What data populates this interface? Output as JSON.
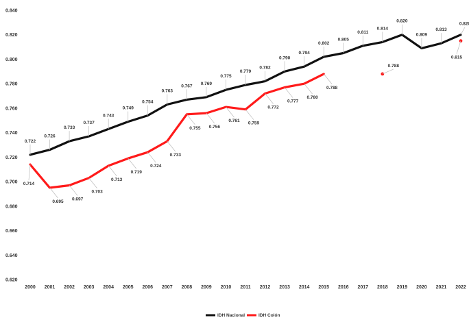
{
  "chart_data": {
    "type": "line",
    "title": "",
    "xlabel": "",
    "ylabel": "",
    "ylim": [
      0.62,
      0.84
    ],
    "ytick_step": 0.02,
    "y_ticks": [
      "0.620",
      "0.640",
      "0.660",
      "0.680",
      "0.700",
      "0.720",
      "0.740",
      "0.760",
      "0.780",
      "0.800",
      "0.820",
      "0.840"
    ],
    "grid": false,
    "legend_position": "bottom",
    "x": [
      "2000",
      "2001",
      "2002",
      "2003",
      "2004",
      "2005",
      "2006",
      "2007",
      "2008",
      "2009",
      "2010",
      "2011",
      "2012",
      "2013",
      "2014",
      "2015",
      "2016",
      "2017",
      "2018",
      "2019",
      "2020",
      "2021",
      "2022"
    ],
    "series": [
      {
        "name": "IDH Nacional",
        "color": "#111111",
        "values": [
          0.722,
          0.726,
          0.733,
          0.737,
          0.743,
          0.749,
          0.754,
          0.763,
          0.767,
          0.769,
          0.775,
          0.779,
          0.782,
          0.79,
          0.794,
          0.802,
          0.805,
          0.811,
          0.814,
          0.82,
          0.809,
          0.813,
          0.82
        ],
        "labels": [
          "0.722",
          "0.726",
          "0.733",
          "0.737",
          "0.743",
          "0.749",
          "0.754",
          "0.763",
          "0.767",
          "0.769",
          "0.775",
          "0.779",
          "0.782",
          "0.790",
          "0.794",
          "0.802",
          "0.805",
          "0.811",
          "0.814",
          "0.820",
          "0.809",
          "0.813",
          "0.820"
        ]
      },
      {
        "name": "IDH Colón",
        "color": "#ff1a1a",
        "values": [
          0.714,
          0.695,
          0.697,
          0.703,
          0.713,
          0.719,
          0.724,
          0.733,
          0.755,
          0.756,
          0.761,
          0.759,
          0.772,
          0.777,
          0.78,
          0.788,
          null,
          null,
          0.788,
          null,
          null,
          null,
          0.815
        ],
        "labels": [
          "0.714",
          "0.695",
          "0.697",
          "0.703",
          "0.713",
          "0.719",
          "0.724",
          "0.733",
          "0.755",
          "0.756",
          "0.761",
          "0.759",
          "0.772",
          "0.777",
          "0.780",
          "0.788",
          null,
          null,
          "0.788",
          null,
          null,
          null,
          "0.815"
        ]
      }
    ]
  }
}
